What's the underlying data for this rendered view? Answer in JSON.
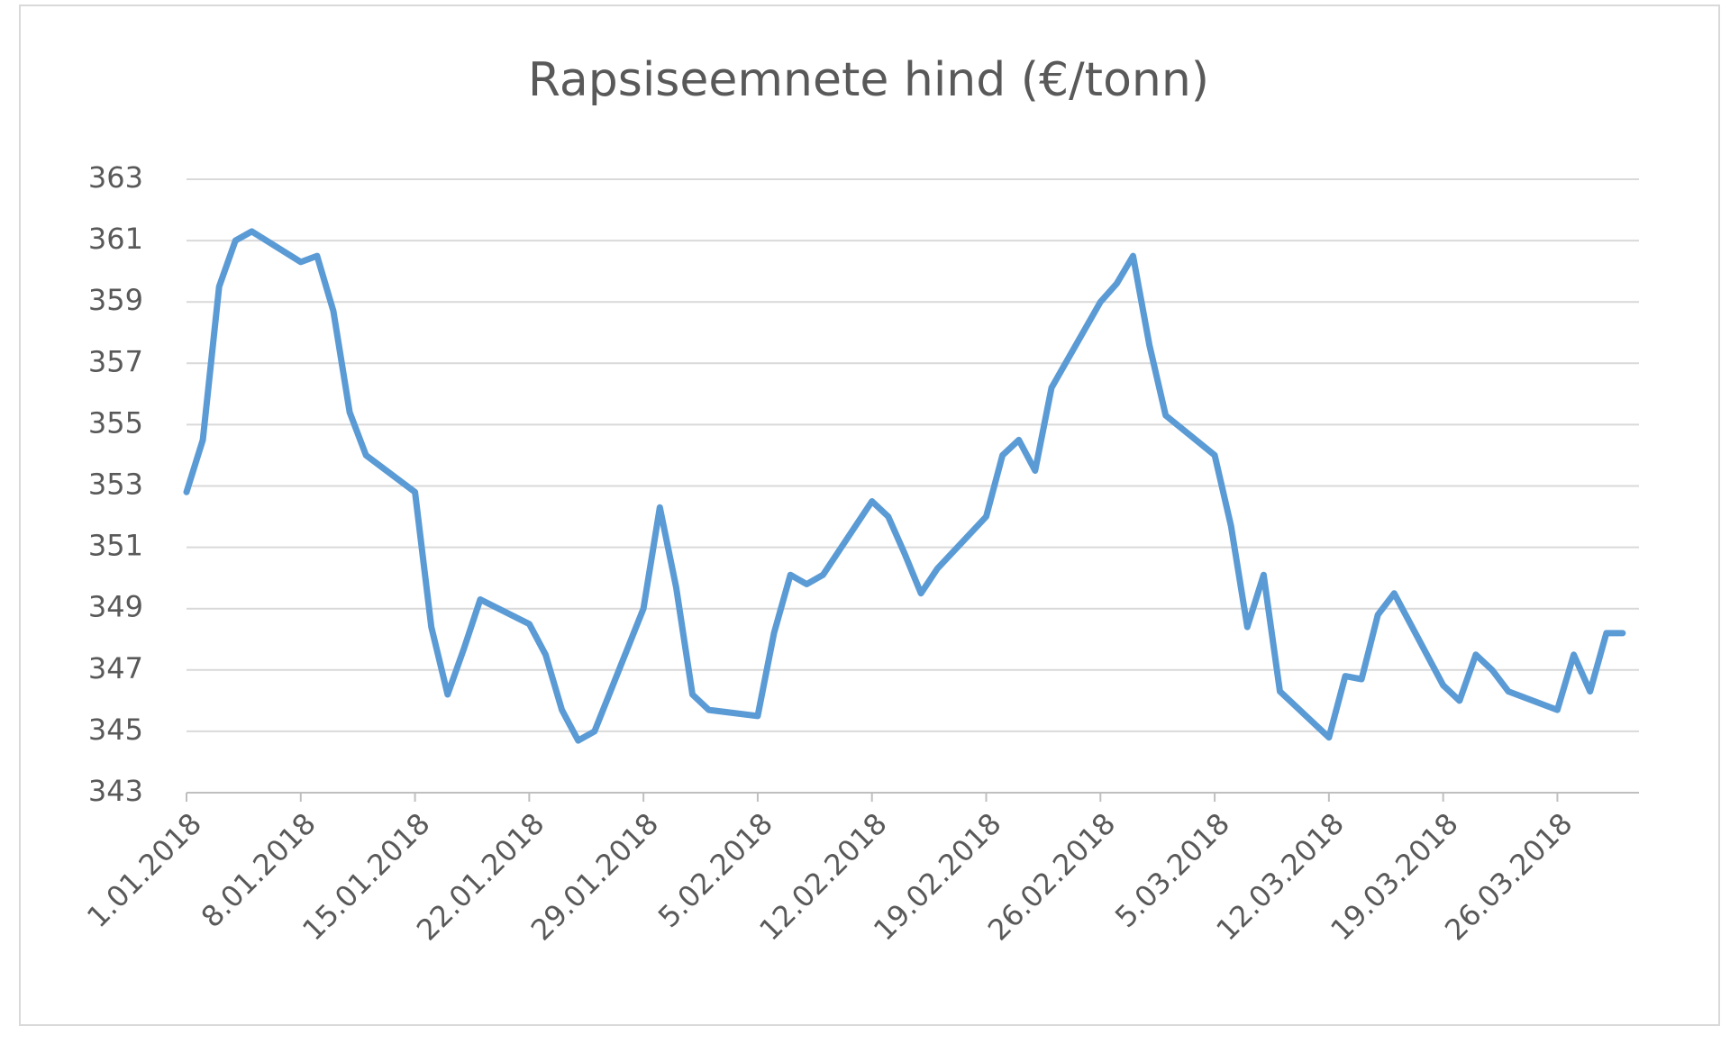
{
  "chart_data": {
    "type": "line",
    "title": "Rapsiseemnete hind (€/tonn)",
    "x": [
      "1.01.2018",
      "2.01.2018",
      "3.01.2018",
      "4.01.2018",
      "5.01.2018",
      "8.01.2018",
      "9.01.2018",
      "10.01.2018",
      "11.01.2018",
      "12.01.2018",
      "15.01.2018",
      "16.01.2018",
      "17.01.2018",
      "18.01.2018",
      "19.01.2018",
      "22.01.2018",
      "23.01.2018",
      "24.01.2018",
      "25.01.2018",
      "26.01.2018",
      "29.01.2018",
      "30.01.2018",
      "31.01.2018",
      "1.02.2018",
      "2.02.2018",
      "5.02.2018",
      "6.02.2018",
      "7.02.2018",
      "8.02.2018",
      "9.02.2018",
      "12.02.2018",
      "13.02.2018",
      "14.02.2018",
      "15.02.2018",
      "16.02.2018",
      "19.02.2018",
      "20.02.2018",
      "21.02.2018",
      "22.02.2018",
      "23.02.2018",
      "26.02.2018",
      "27.02.2018",
      "28.02.2018",
      "1.03.2018",
      "2.03.2018",
      "5.03.2018",
      "6.03.2018",
      "7.03.2018",
      "8.03.2018",
      "9.03.2018",
      "12.03.2018",
      "13.03.2018",
      "14.03.2018",
      "15.03.2018",
      "16.03.2018",
      "19.03.2018",
      "20.03.2018",
      "21.03.2018",
      "22.03.2018",
      "23.03.2018",
      "26.03.2018",
      "27.03.2018",
      "28.03.2018",
      "29.03.2018",
      "30.03.2018"
    ],
    "series": [
      {
        "color": "#5b9bd5",
        "values": [
          352.8,
          354.5,
          359.5,
          361.0,
          361.3,
          360.3,
          360.5,
          358.7,
          355.4,
          354.0,
          352.8,
          348.4,
          346.2,
          347.7,
          349.3,
          348.5,
          347.5,
          345.7,
          344.7,
          345.0,
          349.0,
          352.3,
          349.7,
          346.2,
          345.7,
          345.5,
          348.2,
          350.1,
          349.8,
          350.1,
          352.5,
          352.0,
          350.8,
          349.5,
          350.3,
          352.0,
          354.0,
          354.5,
          353.5,
          356.2,
          359.0,
          359.6,
          360.5,
          357.6,
          355.3,
          354.0,
          351.7,
          348.4,
          350.1,
          346.3,
          344.8,
          346.8,
          346.7,
          348.8,
          349.5,
          346.5,
          346.0,
          347.5,
          347.0,
          346.3,
          345.7,
          347.5,
          346.3,
          348.2,
          348.2
        ]
      }
    ],
    "xlim": [
      "1.01.2018",
      "31.03.2018"
    ],
    "xticks": [
      "1.01.2018",
      "8.01.2018",
      "15.01.2018",
      "22.01.2018",
      "29.01.2018",
      "5.02.2018",
      "12.02.2018",
      "19.02.2018",
      "26.02.2018",
      "5.03.2018",
      "12.03.2018",
      "19.03.2018",
      "26.03.2018"
    ],
    "ylim": [
      343,
      363
    ],
    "yticks": [
      343,
      345,
      347,
      349,
      351,
      353,
      355,
      357,
      359,
      361,
      363
    ],
    "grid": true
  }
}
